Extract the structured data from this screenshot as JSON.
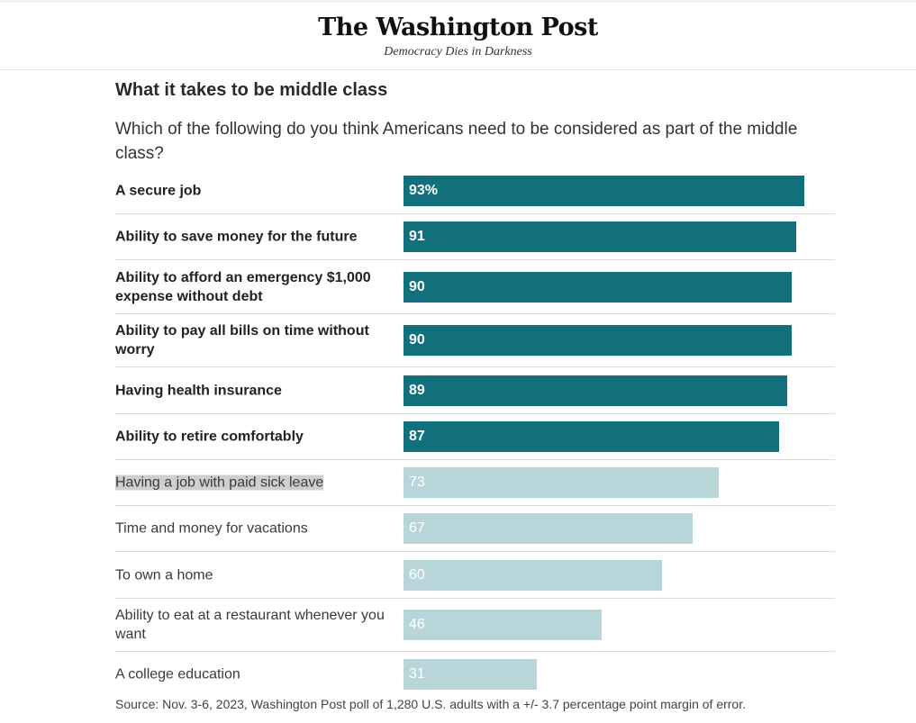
{
  "masthead": {
    "logo": "The Washington Post",
    "tagline": "Democracy Dies in Darkness"
  },
  "chart_data": {
    "type": "bar",
    "orientation": "horizontal",
    "title": "What it takes to be middle class",
    "subtitle": "Which of the following do you think Americans need to be considered as part of the middle class?",
    "categories": [
      "A secure job",
      "Ability to save money for the future",
      "Ability to afford an emergency $1,000 expense without debt",
      "Ability to pay all bills on time without worry",
      "Having health insurance",
      "Ability to retire comfortably",
      "Having a job with paid sick leave",
      "Time and money for vacations",
      "To own a home",
      "Ability to eat at a restaurant whenever you want",
      "A college education"
    ],
    "values": [
      93,
      91,
      90,
      90,
      89,
      87,
      73,
      67,
      60,
      46,
      31
    ],
    "value_labels": [
      "93%",
      "91",
      "90",
      "90",
      "89",
      "87",
      "73",
      "67",
      "60",
      "46",
      "31"
    ],
    "emphasized_count": 6,
    "highlighted_index": 6,
    "xlim": [
      0,
      100
    ],
    "colors": {
      "emphasized": "#12707d",
      "other": "#b8d6da"
    },
    "grid": false,
    "legend": "none"
  },
  "source": "Source: Nov. 3-6, 2023, Washington Post poll of 1,280 U.S. adults with a +/- 3.7 percentage point margin of error."
}
